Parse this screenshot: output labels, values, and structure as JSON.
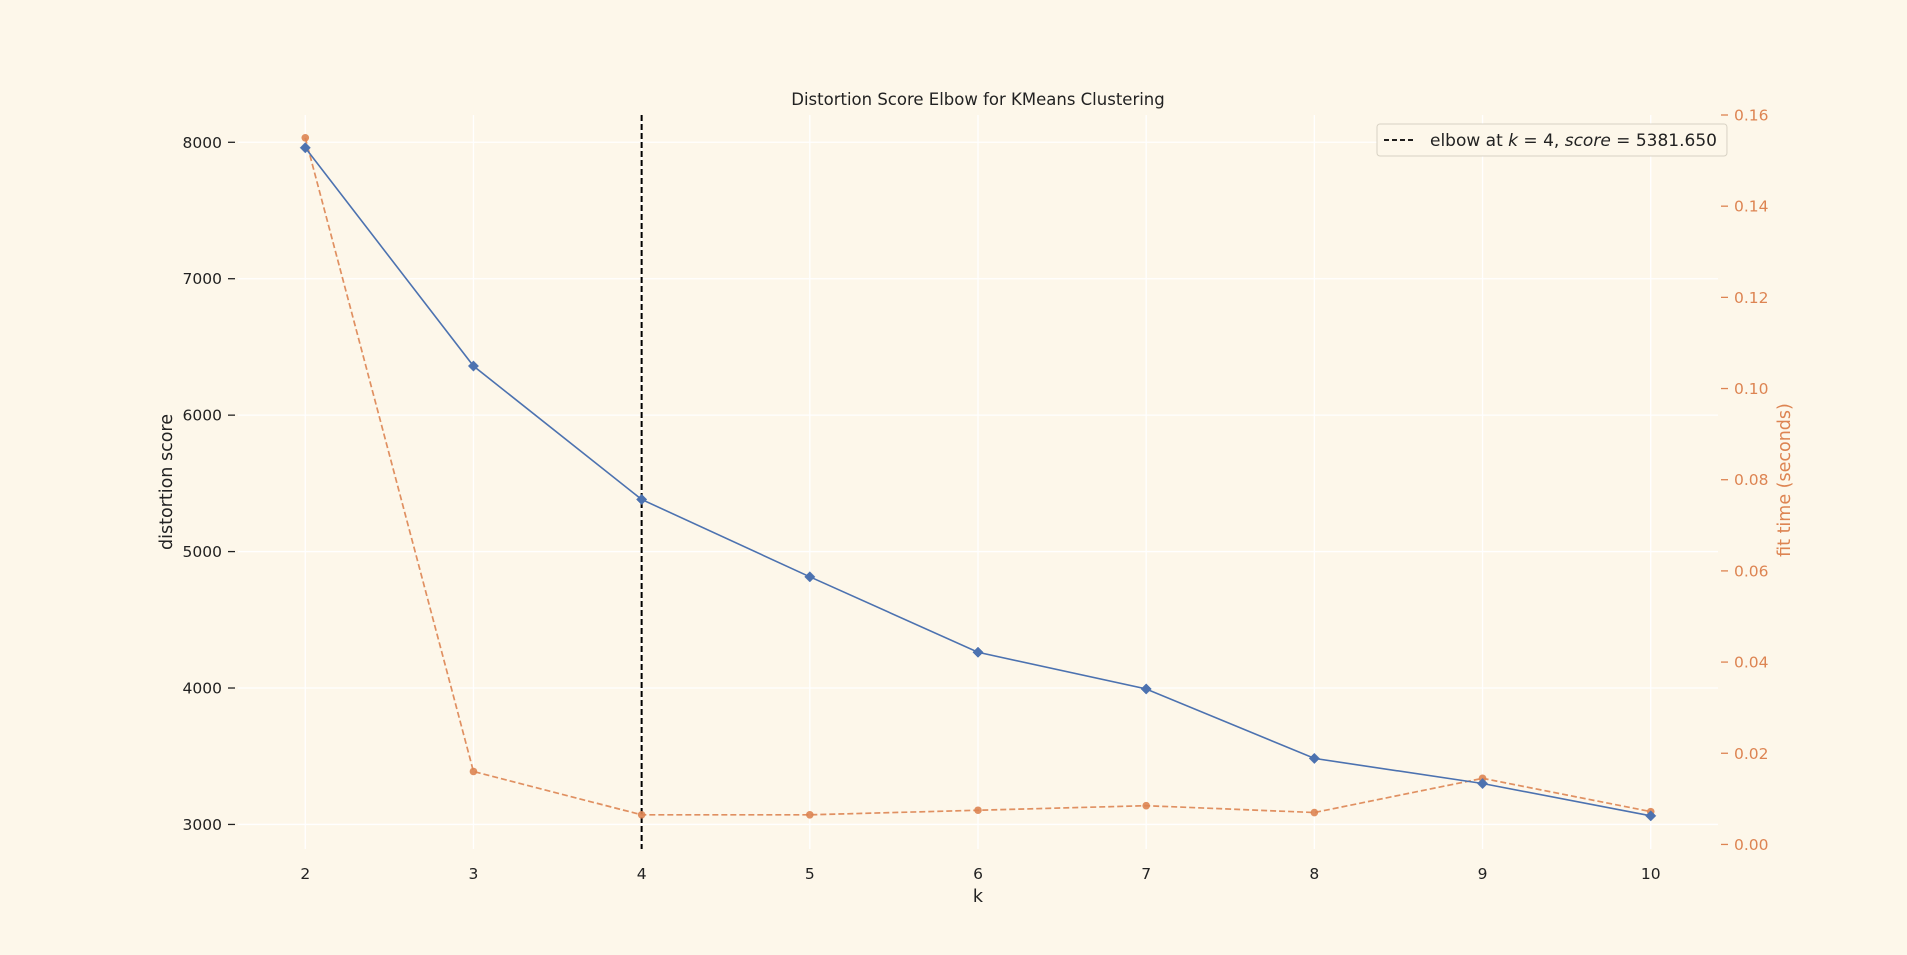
{
  "chart_data": {
    "type": "line",
    "title": "Distortion Score Elbow for KMeans Clustering",
    "xlabel": "k",
    "ylabel": "distortion score",
    "y2label": "fit time (seconds)",
    "x": [
      2,
      3,
      4,
      5,
      6,
      7,
      8,
      9,
      10
    ],
    "xlim": [
      1.6,
      10.4
    ],
    "ylim": [
      2820,
      8200
    ],
    "y2lim": [
      -0.001,
      0.16
    ],
    "x_ticks": [
      "2",
      "3",
      "4",
      "5",
      "6",
      "7",
      "8",
      "9",
      "10"
    ],
    "y_ticks": [
      "3000",
      "4000",
      "5000",
      "6000",
      "7000",
      "8000"
    ],
    "y2_ticks": [
      "0.00",
      "0.02",
      "0.04",
      "0.06",
      "0.08",
      "0.10",
      "0.12",
      "0.14",
      "0.16"
    ],
    "grid": true,
    "series": [
      {
        "role": "distortion",
        "axis": "left",
        "color": "#4c72b0",
        "marker": "diamond",
        "linestyle": "solid",
        "values": [
          7960,
          6360,
          5382,
          4815,
          4262,
          3993,
          3484,
          3300,
          3063
        ]
      },
      {
        "role": "fit_time",
        "axis": "right",
        "color": "#dd8452",
        "marker": "circle",
        "linestyle": "dashed",
        "values": [
          0.155,
          0.016,
          0.0065,
          0.0065,
          0.0075,
          0.0085,
          0.007,
          0.0145,
          0.0072
        ]
      }
    ],
    "elbow": {
      "k": 4,
      "score": 5381.65,
      "color": "#000000",
      "label_prefix": "elbow at ",
      "label_k": "k",
      "label_k_value": " = 4, ",
      "label_score": "score",
      "label_score_value": " = 5381.650"
    },
    "legend": {
      "placement": "top-right"
    }
  }
}
